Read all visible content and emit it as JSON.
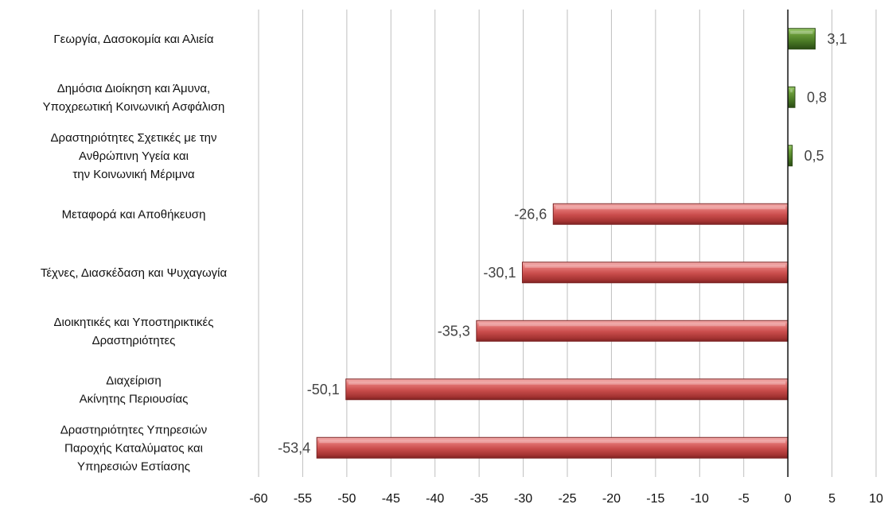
{
  "chart_data": {
    "type": "bar",
    "orientation": "horizontal",
    "categories": [
      [
        "Γεωργία, Δασοκομία και Αλιεία"
      ],
      [
        "Δημόσια Διοίκηση και Άμυνα,",
        "Υποχρεωτική Κοινωνική Ασφάλιση"
      ],
      [
        "Δραστηριότητες Σχετικές με την",
        "Ανθρώπινη Υγεία και",
        "την Κοινωνική Μέριμνα"
      ],
      [
        "Μεταφορά και Αποθήκευση"
      ],
      [
        "Τέχνες, Διασκέδαση και Ψυχαγωγία"
      ],
      [
        "Διοικητικές και Υποστηρικτικές",
        "Δραστηριότητες"
      ],
      [
        "Διαχείριση",
        "Ακίνητης Περιουσίας"
      ],
      [
        "Δραστηριότητες Υπηρεσιών",
        "Παροχής Καταλύματος και",
        "Υπηρεσιών Εστίασης"
      ]
    ],
    "values": [
      3.1,
      0.8,
      0.5,
      -26.6,
      -30.1,
      -35.3,
      -50.1,
      -53.4
    ],
    "value_labels": [
      "3,1",
      "0,8",
      "0,5",
      "-26,6",
      "-30,1",
      "-35,3",
      "-50,1",
      "-53,4"
    ],
    "xlim": [
      -60,
      10
    ],
    "xticks": [
      -60,
      -55,
      -50,
      -45,
      -40,
      -35,
      -30,
      -25,
      -20,
      -15,
      -10,
      -5,
      0,
      5,
      10
    ],
    "xtick_labels": [
      "-60",
      "-55",
      "-50",
      "-45",
      "-40",
      "-35",
      "-30",
      "-25",
      "-20",
      "-15",
      "-10",
      "-5",
      "0",
      "5",
      "10"
    ],
    "grid": "vertical",
    "colors": {
      "positive": "#4f7f2c",
      "negative": "#c9504f"
    },
    "title": "",
    "xlabel": "",
    "ylabel": ""
  }
}
